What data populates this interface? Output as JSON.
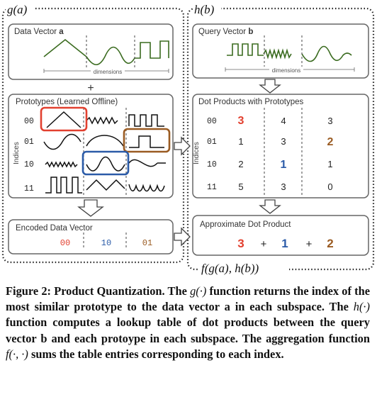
{
  "left": {
    "title": "g(a)",
    "data_vector": {
      "label": "Data Vector",
      "var": "a",
      "axis": "dimensions"
    },
    "plus": "+",
    "prototypes": {
      "label": "Prototypes (Learned Offline)",
      "axis_label": "Indices",
      "indices": [
        "00",
        "01",
        "10",
        "11"
      ]
    },
    "encoded": {
      "label": "Encoded Data Vector",
      "codes": [
        "00",
        "10",
        "01"
      ]
    }
  },
  "right": {
    "title": "h(b)",
    "query_vector": {
      "label": "Query Vector",
      "var": "b",
      "axis": "dimensions"
    },
    "dot_products": {
      "label": "Dot Products with Prototypes",
      "axis_label": "Indices",
      "indices": [
        "00",
        "01",
        "10",
        "11"
      ],
      "rows": [
        [
          "3",
          "4",
          "3"
        ],
        [
          "1",
          "3",
          "2"
        ],
        [
          "2",
          "1",
          "1"
        ],
        [
          "5",
          "3",
          "0"
        ]
      ]
    },
    "approx": {
      "label": "Approximate Dot Product",
      "terms": [
        "3",
        "+",
        "1",
        "+",
        "2"
      ]
    },
    "footer": "f(g(a), h(b))"
  },
  "colors": {
    "red": "#e2402f",
    "blue": "#2b5ba8",
    "brown": "#9a5b22",
    "green": "#3a6b1f"
  },
  "caption": {
    "label": "Figure 2: Product Quantization.",
    "text_1": " The ",
    "g_fn": "g(·)",
    "text_2": " function returns the index of the most similar prototype to the data vector a in each subspace. The ",
    "h_fn": "h(·)",
    "text_3": " function computes a lookup table of dot products between the query vector b and each protoype in each subspace. The aggregation function ",
    "f_fn": "f(·, ·)",
    "text_4": " sums the table entries corresponding to each index."
  }
}
